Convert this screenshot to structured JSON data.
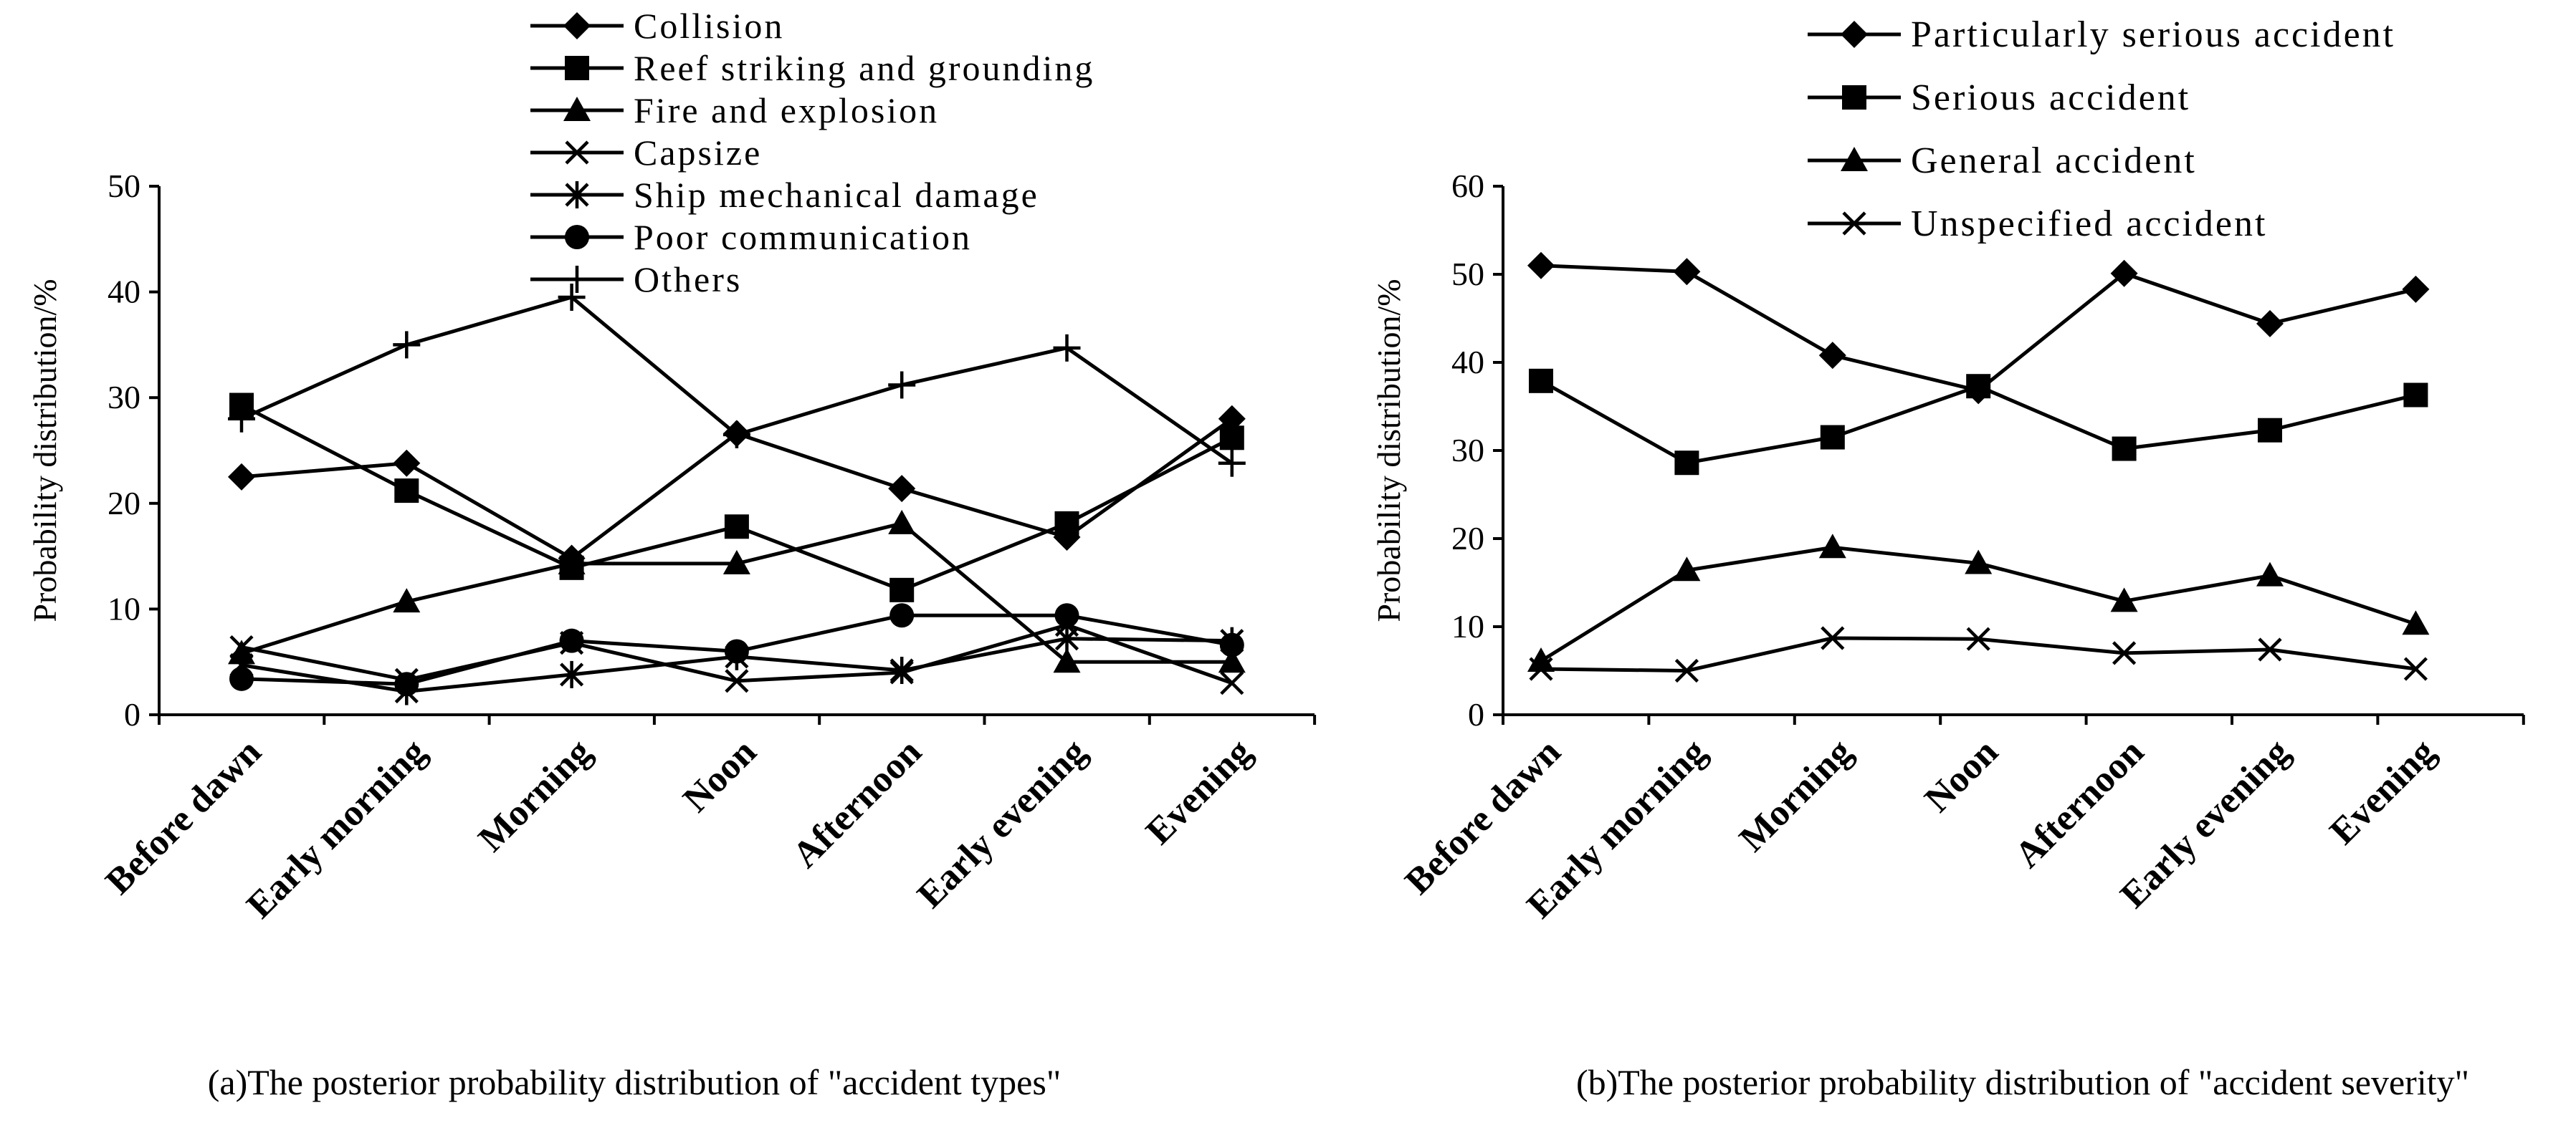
{
  "chart_data": [
    {
      "type": "line",
      "categories": [
        "Before dawn",
        "Early morning",
        "Morning",
        "Noon",
        "Afternoon",
        "Early evening",
        "Evening"
      ],
      "ylabel": "Probability distribution/%",
      "ylim": [
        0,
        50
      ],
      "yticks": [
        0,
        10,
        20,
        30,
        40,
        50
      ],
      "grid": false,
      "legend_position": "top-center",
      "caption": "(a)The posterior probability distribution of \"accident types\"",
      "series": [
        {
          "name": "Collision",
          "marker": "diamond",
          "values": [
            22.5,
            23.8,
            14.8,
            26.6,
            21.4,
            16.8,
            28.0
          ]
        },
        {
          "name": "Reef striking and grounding",
          "marker": "square",
          "values": [
            29.3,
            21.2,
            13.9,
            17.8,
            11.8,
            18.1,
            26.2
          ]
        },
        {
          "name": "Fire and explosion",
          "marker": "triangle",
          "values": [
            5.8,
            10.7,
            14.3,
            14.3,
            18.1,
            5.0,
            5.0
          ]
        },
        {
          "name": "Capsize",
          "marker": "x",
          "values": [
            6.4,
            3.3,
            6.8,
            3.2,
            4.0,
            8.5,
            3.0
          ]
        },
        {
          "name": "Ship mechanical damage",
          "marker": "star",
          "values": [
            4.7,
            2.2,
            3.8,
            5.5,
            4.2,
            7.2,
            7.0
          ]
        },
        {
          "name": "Poor communication",
          "marker": "circle",
          "values": [
            3.4,
            2.9,
            7.0,
            6.0,
            9.4,
            9.4,
            6.6
          ]
        },
        {
          "name": "Others",
          "marker": "plus",
          "values": [
            28.0,
            35.0,
            39.5,
            26.5,
            31.2,
            34.7,
            23.8
          ]
        }
      ]
    },
    {
      "type": "line",
      "categories": [
        "Before dawn",
        "Early morning",
        "Morning",
        "Noon",
        "Afternoon",
        "Early evening",
        "Evening"
      ],
      "ylabel": "Probability distribution/%",
      "ylim": [
        0,
        60
      ],
      "yticks": [
        0,
        10,
        20,
        30,
        40,
        50,
        60
      ],
      "grid": false,
      "legend_position": "top-right",
      "caption": "(b)The posterior probability distribution of \"accident severity\"",
      "series": [
        {
          "name": "Particularly serious accident",
          "marker": "diamond",
          "values": [
            51.0,
            50.3,
            40.8,
            36.8,
            50.1,
            44.4,
            48.3
          ]
        },
        {
          "name": "Serious accident",
          "marker": "square",
          "values": [
            37.9,
            28.6,
            31.5,
            37.3,
            30.2,
            32.3,
            36.3
          ]
        },
        {
          "name": "General accident",
          "marker": "triangle",
          "values": [
            6.1,
            16.4,
            19.0,
            17.2,
            12.9,
            15.8,
            10.3
          ]
        },
        {
          "name": "Unspecified accident",
          "marker": "x",
          "values": [
            5.2,
            5.0,
            8.7,
            8.6,
            7.0,
            7.4,
            5.2
          ]
        }
      ]
    }
  ]
}
